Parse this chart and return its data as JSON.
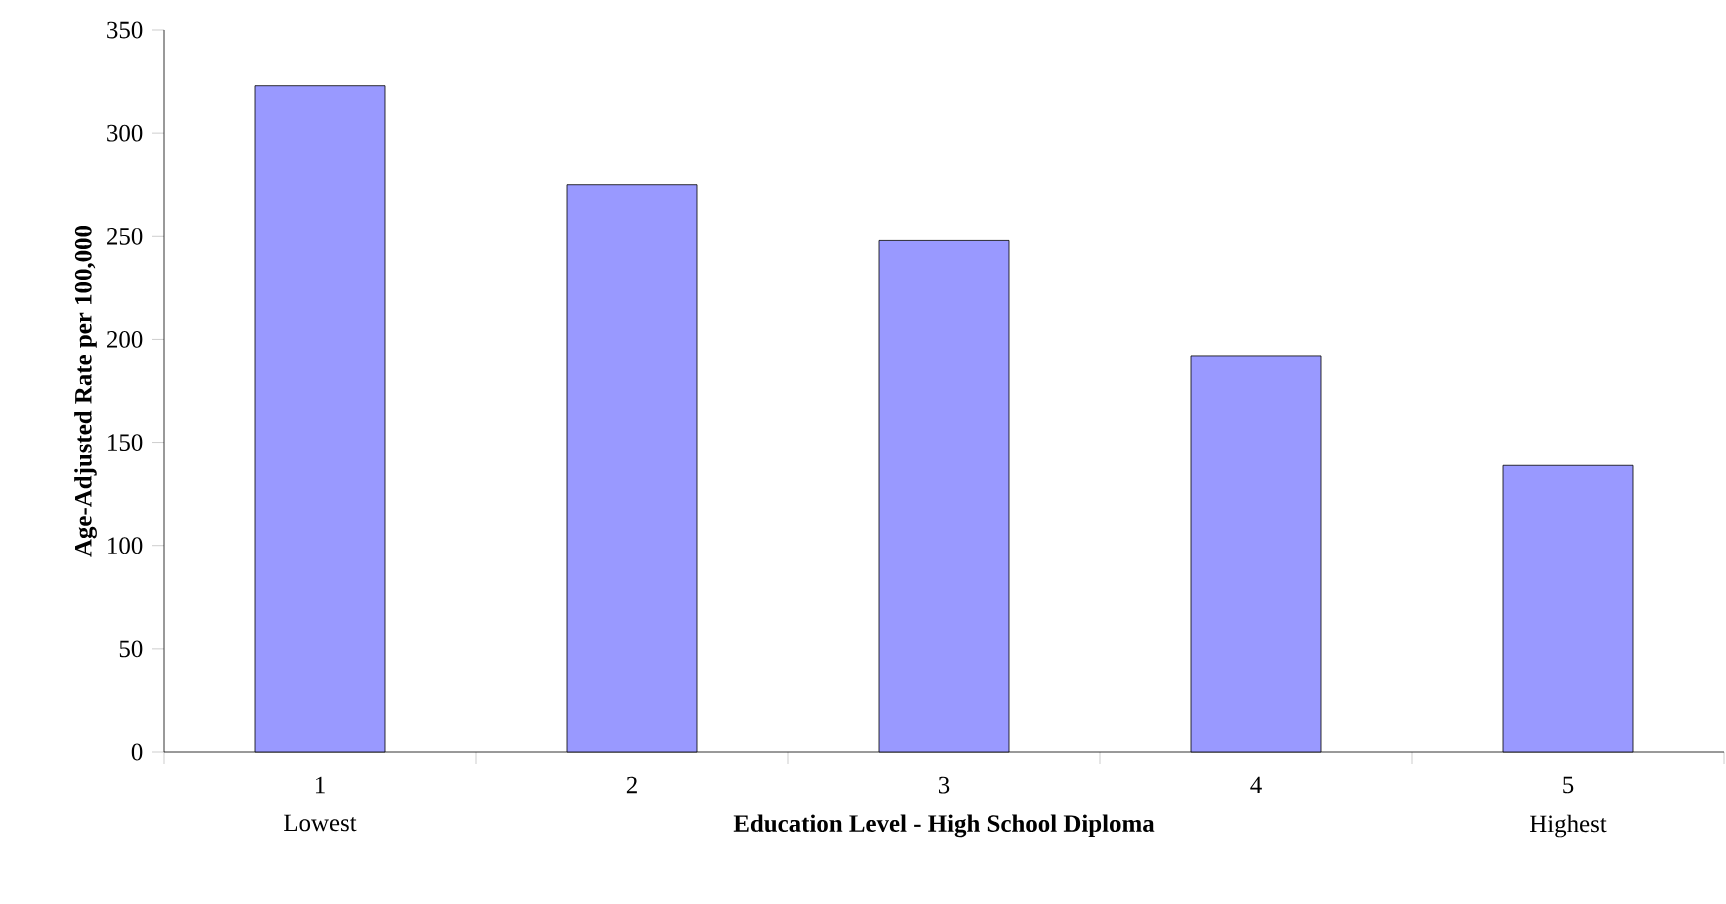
{
  "chart_data": {
    "type": "bar",
    "xlabel": "Education Level - High School Diploma",
    "ylabel": "Age-Adjusted Rate per 100,000",
    "categories": [
      "1",
      "2",
      "3",
      "4",
      "5"
    ],
    "values": [
      323,
      275,
      248,
      192,
      139
    ],
    "color": "#9999ff",
    "ylim": [
      0,
      350
    ],
    "yticks": [
      0,
      50,
      100,
      150,
      200,
      250,
      300,
      350
    ],
    "grid": false,
    "annotations": [
      "Lowest",
      "Highest"
    ]
  }
}
